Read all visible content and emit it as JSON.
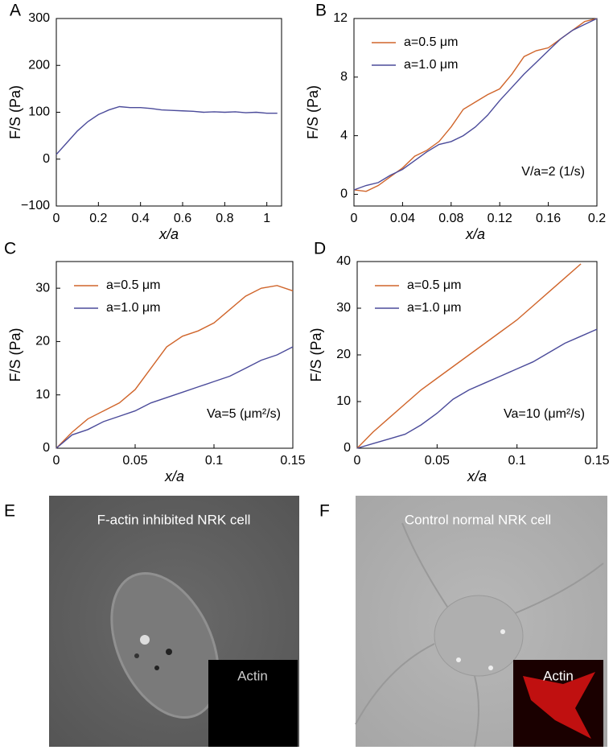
{
  "chart_data": [
    {
      "type": "line",
      "panel_label": "A",
      "xlabel": "x/a",
      "ylabel": "F/S (Pa)",
      "x": [
        0,
        0.05,
        0.1,
        0.15,
        0.2,
        0.25,
        0.3,
        0.35,
        0.4,
        0.45,
        0.5,
        0.55,
        0.6,
        0.65,
        0.7,
        0.75,
        0.8,
        0.85,
        0.9,
        0.95,
        1.0,
        1.05
      ],
      "series": [
        {
          "color": "#4b4b9a",
          "values": [
            10,
            35,
            60,
            80,
            95,
            105,
            112,
            110,
            110,
            108,
            105,
            104,
            103,
            102,
            100,
            101,
            100,
            101,
            99,
            100,
            98,
            98
          ]
        }
      ],
      "xlim": [
        0,
        1.07
      ],
      "xticks": [
        0,
        0.2,
        0.4,
        0.6,
        0.8,
        1
      ],
      "ylim": [
        -100,
        300
      ],
      "yticks": [
        {
          "value": -100,
          "label": "−100"
        },
        0,
        100,
        200,
        300
      ]
    },
    {
      "type": "line",
      "panel_label": "B",
      "xlabel": "x/a",
      "ylabel": "F/S (Pa)",
      "annotation": "V/a=2 (1/s)",
      "x": [
        0,
        0.01,
        0.02,
        0.03,
        0.04,
        0.05,
        0.06,
        0.07,
        0.08,
        0.09,
        0.1,
        0.11,
        0.12,
        0.13,
        0.14,
        0.15,
        0.16,
        0.17,
        0.18,
        0.19,
        0.2
      ],
      "series": [
        {
          "name": "a=0.5 μm",
          "color": "#d0652b",
          "values": [
            0.3,
            0.2,
            0.6,
            1.2,
            1.8,
            2.6,
            3.0,
            3.6,
            4.6,
            5.8,
            6.3,
            6.8,
            7.2,
            8.2,
            9.4,
            9.8,
            10.0,
            10.6,
            11.2,
            11.8,
            12.0
          ]
        },
        {
          "name": "a=1.0 μm",
          "color": "#4b4b9a",
          "values": [
            0.3,
            0.6,
            0.8,
            1.3,
            1.7,
            2.3,
            2.9,
            3.4,
            3.6,
            4.0,
            4.6,
            5.4,
            6.4,
            7.3,
            8.2,
            9.0,
            9.8,
            10.6,
            11.2,
            11.6,
            12.0
          ]
        }
      ],
      "xlim": [
        0,
        0.2
      ],
      "xticks": [
        0,
        0.04,
        0.08,
        0.12,
        0.16,
        0.2
      ],
      "ylim": [
        -0.8,
        12
      ],
      "yticks": [
        0,
        4,
        8,
        12
      ]
    },
    {
      "type": "line",
      "panel_label": "C",
      "xlabel": "x/a",
      "ylabel": "F/S (Pa)",
      "annotation": "Va=5 (μm²/s)",
      "x": [
        0,
        0.01,
        0.02,
        0.03,
        0.04,
        0.05,
        0.06,
        0.07,
        0.08,
        0.09,
        0.1,
        0.11,
        0.12,
        0.13,
        0.14,
        0.15
      ],
      "series": [
        {
          "name": "a=0.5 μm",
          "color": "#d0652b",
          "values": [
            0,
            3,
            5.5,
            7,
            8.5,
            11,
            15,
            19,
            21,
            22,
            23.5,
            26,
            28.5,
            30,
            30.5,
            29.5
          ]
        },
        {
          "name": "a=1.0 μm",
          "color": "#4b4b9a",
          "values": [
            0,
            2.5,
            3.5,
            5,
            6,
            7,
            8.5,
            9.5,
            10.5,
            11.5,
            12.5,
            13.5,
            15,
            16.5,
            17.5,
            19
          ]
        }
      ],
      "xlim": [
        0,
        0.15
      ],
      "xticks": [
        0,
        0.05,
        0.1,
        0.15
      ],
      "ylim": [
        0,
        35
      ],
      "yticks": [
        0,
        10,
        20,
        30
      ]
    },
    {
      "type": "line",
      "panel_label": "D",
      "xlabel": "x/a",
      "ylabel": "F/S (Pa)",
      "annotation": "Va=10 (μm²/s)",
      "x": [
        0,
        0.01,
        0.02,
        0.03,
        0.04,
        0.05,
        0.06,
        0.07,
        0.08,
        0.09,
        0.1,
        0.11,
        0.12,
        0.13,
        0.14,
        0.15
      ],
      "series": [
        {
          "name": "a=0.5 μm",
          "color": "#d0652b",
          "values": [
            0,
            3.5,
            6.5,
            9.5,
            12.5,
            15,
            17.5,
            20,
            22.5,
            25,
            27.5,
            30.5,
            33.5,
            36.5,
            39.5,
            null
          ]
        },
        {
          "name": "a=1.0 μm",
          "color": "#4b4b9a",
          "values": [
            0,
            1,
            2,
            3,
            5,
            7.5,
            10.5,
            12.5,
            14,
            15.5,
            17,
            18.5,
            20.5,
            22.5,
            24,
            25.5
          ]
        }
      ],
      "xlim": [
        0,
        0.15
      ],
      "xticks": [
        0,
        0.05,
        0.1,
        0.15
      ],
      "ylim": [
        0,
        40
      ],
      "yticks": [
        0,
        10,
        20,
        30,
        40
      ]
    }
  ],
  "images": [
    {
      "panel_label": "E",
      "caption": "F-actin inhibited NRK cell",
      "inset_label": "Actin"
    },
    {
      "panel_label": "F",
      "caption": "Control normal NRK cell",
      "inset_label": "Actin"
    }
  ]
}
